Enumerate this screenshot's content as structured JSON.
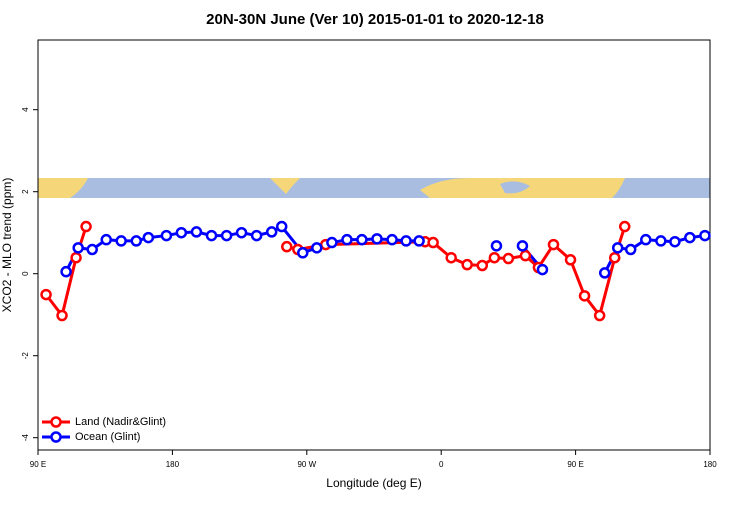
{
  "chart_data": {
    "type": "line",
    "title": "20N-30N June (Ver 10)   2015-01-01 to 2020-12-18",
    "x_label": "Longitude (deg E)",
    "y_label": "XCO2 - MLO trend (ppm)",
    "xlim": [
      90,
      540
    ],
    "ylim": [
      -4.3,
      5.7
    ],
    "xticks": [
      {
        "value": 90,
        "label": "90 E"
      },
      180,
      {
        "value": 270,
        "label": "90 W"
      },
      {
        "value": 360,
        "label": "0"
      },
      {
        "value": 450,
        "label": "90 E"
      },
      {
        "value": 540,
        "label": "180"
      }
    ],
    "yticks": [
      -4,
      -2,
      0,
      2,
      4
    ],
    "legend": "bottom-left",
    "series": [
      {
        "name": "Land (Nadir&Glint)",
        "color": "#ff0000",
        "x": [
          95.4,
          106.1,
          115.5,
          122.2,
          null,
          256.6,
          264,
          282.7,
          349.2,
          354.6,
          366.7,
          377.4,
          387.5,
          395.6,
          405,
          416.4,
          425.1,
          435.2,
          446.6,
          456,
          466.1,
          476.2,
          482.9
        ],
        "values": [
          -0.51,
          -1.02,
          0.39,
          1.15,
          null,
          0.66,
          0.59,
          0.71,
          0.78,
          0.76,
          0.39,
          0.22,
          0.2,
          0.39,
          0.37,
          0.44,
          0.15,
          0.71,
          0.34,
          -0.54,
          -1.02,
          0.39,
          1.15
        ]
      },
      {
        "name": "Ocean (Glint)",
        "color": "#0000ff",
        "x": [
          108.8,
          116.9,
          126.3,
          135.7,
          145.7,
          155.8,
          163.9,
          176,
          186,
          196.1,
          206.2,
          216.3,
          226.3,
          236.4,
          246.5,
          253.2,
          267.3,
          276.7,
          286.8,
          296.9,
          306.9,
          317,
          327.1,
          336.5,
          345.2,
          null,
          397,
          null,
          414.4,
          427.8,
          null,
          469.5,
          478.2,
          486.9,
          497,
          507.1,
          516.5,
          526.5,
          536.6
        ],
        "values": [
          0.05,
          0.63,
          0.59,
          0.83,
          0.8,
          0.8,
          0.88,
          0.93,
          1.0,
          1.02,
          0.93,
          0.93,
          1.0,
          0.93,
          1.02,
          1.15,
          0.51,
          0.63,
          0.76,
          0.83,
          0.83,
          0.85,
          0.83,
          0.8,
          0.8,
          null,
          0.68,
          null,
          0.68,
          0.1,
          null,
          0.02,
          0.63,
          0.59,
          0.83,
          0.8,
          0.78,
          0.88,
          0.93
        ]
      }
    ]
  }
}
